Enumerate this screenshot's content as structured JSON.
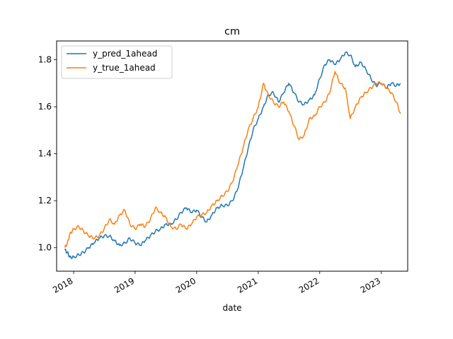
{
  "chart_data": {
    "type": "line",
    "title": "cm",
    "xlabel": "date",
    "ylabel": "",
    "xlim": [
      "2017-09-22",
      "2023-06-07"
    ],
    "ylim": [
      0.9,
      1.88
    ],
    "x_ticks": [
      "2018",
      "2019",
      "2020",
      "2021",
      "2022",
      "2023"
    ],
    "y_ticks": [
      "1.0",
      "1.2",
      "1.4",
      "1.6",
      "1.8"
    ],
    "legend_position": "top-left",
    "grid": false,
    "series": [
      {
        "name": "y_pred_1ahead",
        "color": "#1f77b4",
        "points": [
          [
            "2017-11-10",
            0.99
          ],
          [
            "2017-11-25",
            0.98
          ],
          [
            "2017-12-10",
            0.96
          ],
          [
            "2018-01-01",
            0.96
          ],
          [
            "2018-02-01",
            0.97
          ],
          [
            "2018-03-01",
            0.98
          ],
          [
            "2018-04-01",
            1.0
          ],
          [
            "2018-05-01",
            1.02
          ],
          [
            "2018-06-01",
            1.04
          ],
          [
            "2018-07-01",
            1.05
          ],
          [
            "2018-08-01",
            1.05
          ],
          [
            "2018-09-01",
            1.03
          ],
          [
            "2018-10-01",
            1.01
          ],
          [
            "2018-11-01",
            1.02
          ],
          [
            "2018-12-01",
            1.04
          ],
          [
            "2019-01-01",
            1.02
          ],
          [
            "2019-02-01",
            1.01
          ],
          [
            "2019-03-01",
            1.03
          ],
          [
            "2019-04-01",
            1.05
          ],
          [
            "2019-05-01",
            1.07
          ],
          [
            "2019-06-01",
            1.08
          ],
          [
            "2019-07-01",
            1.1
          ],
          [
            "2019-08-01",
            1.1
          ],
          [
            "2019-09-01",
            1.12
          ],
          [
            "2019-10-01",
            1.15
          ],
          [
            "2019-11-01",
            1.17
          ],
          [
            "2019-12-01",
            1.15
          ],
          [
            "2020-01-01",
            1.16
          ],
          [
            "2020-02-01",
            1.13
          ],
          [
            "2020-03-01",
            1.11
          ],
          [
            "2020-04-01",
            1.14
          ],
          [
            "2020-05-01",
            1.17
          ],
          [
            "2020-06-01",
            1.18
          ],
          [
            "2020-07-01",
            1.18
          ],
          [
            "2020-08-01",
            1.2
          ],
          [
            "2020-09-01",
            1.25
          ],
          [
            "2020-10-01",
            1.33
          ],
          [
            "2020-11-01",
            1.42
          ],
          [
            "2020-12-01",
            1.5
          ],
          [
            "2021-01-01",
            1.55
          ],
          [
            "2021-02-01",
            1.6
          ],
          [
            "2021-03-01",
            1.65
          ],
          [
            "2021-04-01",
            1.66
          ],
          [
            "2021-05-01",
            1.62
          ],
          [
            "2021-06-01",
            1.66
          ],
          [
            "2021-07-01",
            1.7
          ],
          [
            "2021-08-01",
            1.66
          ],
          [
            "2021-09-01",
            1.62
          ],
          [
            "2021-10-01",
            1.61
          ],
          [
            "2021-11-01",
            1.63
          ],
          [
            "2021-12-01",
            1.65
          ],
          [
            "2022-01-01",
            1.72
          ],
          [
            "2022-02-01",
            1.78
          ],
          [
            "2022-03-01",
            1.8
          ],
          [
            "2022-04-01",
            1.78
          ],
          [
            "2022-05-01",
            1.8
          ],
          [
            "2022-06-01",
            1.83
          ],
          [
            "2022-07-01",
            1.82
          ],
          [
            "2022-08-01",
            1.77
          ],
          [
            "2022-09-01",
            1.79
          ],
          [
            "2022-10-01",
            1.76
          ],
          [
            "2022-11-01",
            1.72
          ],
          [
            "2022-12-01",
            1.69
          ],
          [
            "2023-01-01",
            1.7
          ],
          [
            "2023-02-01",
            1.68
          ],
          [
            "2023-03-01",
            1.7
          ],
          [
            "2023-04-01",
            1.69
          ],
          [
            "2023-04-25",
            1.7
          ]
        ]
      },
      {
        "name": "y_true_1ahead",
        "color": "#ff7f0e",
        "points": [
          [
            "2017-11-10",
            1.0
          ],
          [
            "2017-11-25",
            1.02
          ],
          [
            "2017-12-10",
            1.06
          ],
          [
            "2018-01-01",
            1.08
          ],
          [
            "2018-02-01",
            1.09
          ],
          [
            "2018-03-01",
            1.07
          ],
          [
            "2018-04-01",
            1.05
          ],
          [
            "2018-05-01",
            1.04
          ],
          [
            "2018-06-01",
            1.05
          ],
          [
            "2018-07-01",
            1.08
          ],
          [
            "2018-08-01",
            1.12
          ],
          [
            "2018-09-01",
            1.1
          ],
          [
            "2018-10-01",
            1.14
          ],
          [
            "2018-11-01",
            1.16
          ],
          [
            "2018-12-01",
            1.1
          ],
          [
            "2019-01-01",
            1.08
          ],
          [
            "2019-02-01",
            1.1
          ],
          [
            "2019-03-01",
            1.09
          ],
          [
            "2019-04-01",
            1.12
          ],
          [
            "2019-05-01",
            1.17
          ],
          [
            "2019-06-01",
            1.15
          ],
          [
            "2019-07-01",
            1.13
          ],
          [
            "2019-08-01",
            1.09
          ],
          [
            "2019-09-01",
            1.08
          ],
          [
            "2019-10-01",
            1.1
          ],
          [
            "2019-11-01",
            1.08
          ],
          [
            "2019-12-01",
            1.1
          ],
          [
            "2020-01-01",
            1.13
          ],
          [
            "2020-02-01",
            1.14
          ],
          [
            "2020-03-01",
            1.15
          ],
          [
            "2020-04-01",
            1.18
          ],
          [
            "2020-05-01",
            1.2
          ],
          [
            "2020-06-01",
            1.22
          ],
          [
            "2020-07-01",
            1.24
          ],
          [
            "2020-08-01",
            1.28
          ],
          [
            "2020-09-01",
            1.35
          ],
          [
            "2020-10-01",
            1.42
          ],
          [
            "2020-11-01",
            1.5
          ],
          [
            "2020-12-01",
            1.55
          ],
          [
            "2021-01-01",
            1.6
          ],
          [
            "2021-02-01",
            1.7
          ],
          [
            "2021-03-01",
            1.65
          ],
          [
            "2021-04-01",
            1.62
          ],
          [
            "2021-05-01",
            1.6
          ],
          [
            "2021-06-01",
            1.62
          ],
          [
            "2021-07-01",
            1.58
          ],
          [
            "2021-08-01",
            1.52
          ],
          [
            "2021-09-01",
            1.46
          ],
          [
            "2021-10-01",
            1.48
          ],
          [
            "2021-11-01",
            1.55
          ],
          [
            "2021-12-01",
            1.56
          ],
          [
            "2022-01-01",
            1.6
          ],
          [
            "2022-02-01",
            1.62
          ],
          [
            "2022-03-01",
            1.66
          ],
          [
            "2022-04-01",
            1.75
          ],
          [
            "2022-05-01",
            1.7
          ],
          [
            "2022-06-01",
            1.68
          ],
          [
            "2022-07-01",
            1.55
          ],
          [
            "2022-08-01",
            1.6
          ],
          [
            "2022-09-01",
            1.64
          ],
          [
            "2022-10-01",
            1.66
          ],
          [
            "2022-11-01",
            1.68
          ],
          [
            "2022-12-01",
            1.7
          ],
          [
            "2023-01-01",
            1.7
          ],
          [
            "2023-02-01",
            1.68
          ],
          [
            "2023-03-01",
            1.66
          ],
          [
            "2023-04-01",
            1.62
          ],
          [
            "2023-04-25",
            1.57
          ]
        ]
      }
    ]
  }
}
